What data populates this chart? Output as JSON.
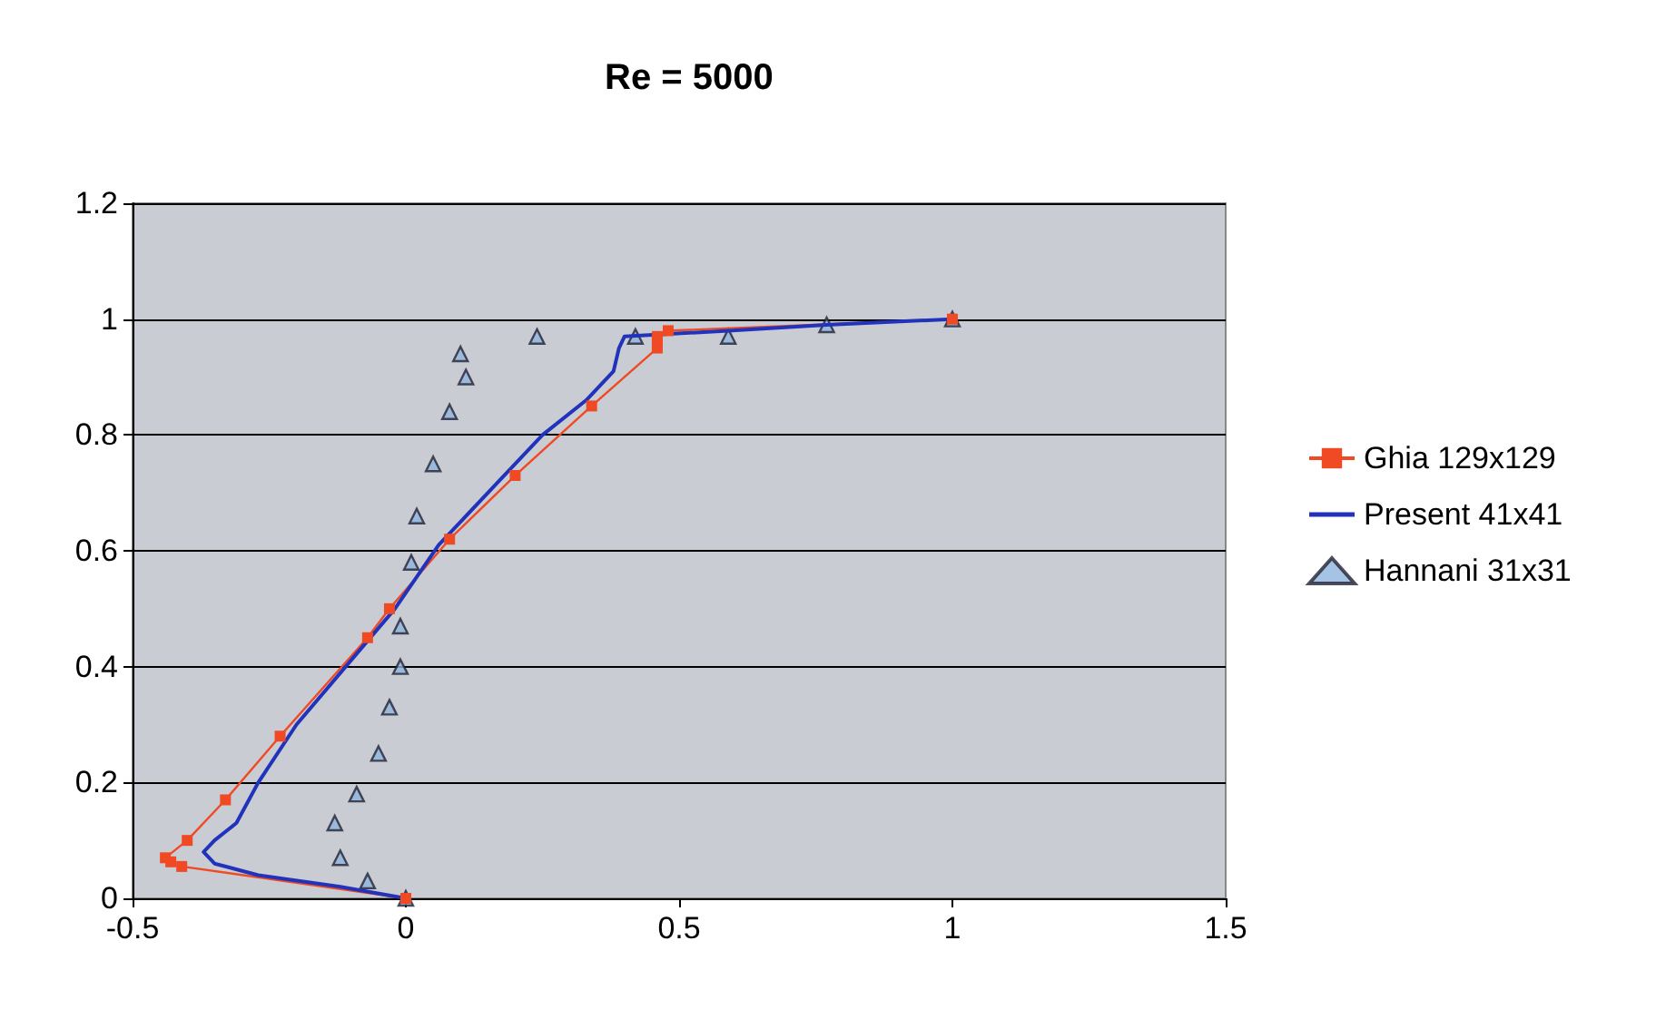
{
  "chart_data": {
    "type": "line",
    "title": "Re = 5000",
    "xlim": [
      -0.5,
      1.5
    ],
    "xticks": [
      -0.5,
      0,
      0.5,
      1,
      1.5
    ],
    "ylim": [
      0,
      1.2
    ],
    "yticks": [
      0,
      0.2,
      0.4,
      0.6,
      0.8,
      1,
      1.2
    ],
    "grid": "y",
    "legend": "right",
    "series": [
      {
        "name": "Ghia 129x129",
        "marker": "square",
        "color": "#f04a24",
        "x": [
          0,
          -0.41,
          -0.43,
          -0.44,
          -0.4,
          -0.33,
          -0.23,
          -0.07,
          -0.03,
          0.08,
          0.2,
          0.34,
          0.46,
          0.46,
          0.46,
          0.48,
          1
        ],
        "values": [
          0,
          0.055,
          0.063,
          0.07,
          0.1,
          0.17,
          0.28,
          0.45,
          0.5,
          0.62,
          0.73,
          0.85,
          0.95,
          0.96,
          0.97,
          0.98,
          1
        ]
      },
      {
        "name": "Present 41x41",
        "marker": "none",
        "color": "#2233bb",
        "x": [
          0,
          -0.12,
          -0.27,
          -0.35,
          -0.37,
          -0.35,
          -0.31,
          -0.27,
          -0.2,
          -0.11,
          -0.02,
          0.06,
          0.17,
          0.25,
          0.33,
          0.38,
          0.39,
          0.4,
          0.59,
          0.77,
          1
        ],
        "values": [
          0,
          0.02,
          0.04,
          0.06,
          0.08,
          0.1,
          0.13,
          0.2,
          0.3,
          0.4,
          0.5,
          0.61,
          0.72,
          0.8,
          0.86,
          0.91,
          0.95,
          0.97,
          0.98,
          0.99,
          1
        ]
      },
      {
        "name": "Hannani 31x31",
        "type": "scatter",
        "marker": "triangle",
        "color": "#8fb4dd",
        "x": [
          0,
          -0.07,
          -0.12,
          -0.13,
          -0.09,
          -0.05,
          -0.03,
          -0.01,
          -0.01,
          0.01,
          0.02,
          0.05,
          0.08,
          0.11,
          0.1,
          0.24,
          0.42,
          0.59,
          0.77,
          1
        ],
        "values": [
          0,
          0.03,
          0.07,
          0.13,
          0.18,
          0.25,
          0.33,
          0.4,
          0.47,
          0.58,
          0.66,
          0.75,
          0.84,
          0.9,
          0.94,
          0.97,
          0.97,
          0.97,
          0.99,
          1
        ]
      }
    ]
  }
}
